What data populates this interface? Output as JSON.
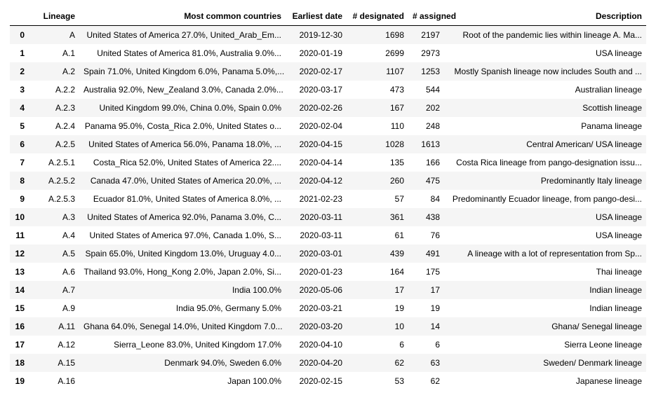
{
  "table": {
    "columns": [
      "",
      "Lineage",
      "Most common countries",
      "Earliest date",
      "# designated",
      "# assigned",
      "Description"
    ],
    "rows": [
      {
        "index": "0",
        "lineage": "A",
        "countries": "United States of America 27.0%, United_Arab_Em...",
        "date": "2019-12-30",
        "designated": "1698",
        "assigned": "2197",
        "description": "Root of the pandemic lies within lineage A. Ma..."
      },
      {
        "index": "1",
        "lineage": "A.1",
        "countries": "United States of America 81.0%, Australia 9.0%...",
        "date": "2020-01-19",
        "designated": "2699",
        "assigned": "2973",
        "description": "USA lineage"
      },
      {
        "index": "2",
        "lineage": "A.2",
        "countries": "Spain 71.0%, United Kingdom 6.0%, Panama 5.0%,...",
        "date": "2020-02-17",
        "designated": "1107",
        "assigned": "1253",
        "description": "Mostly Spanish lineage now includes South and ..."
      },
      {
        "index": "3",
        "lineage": "A.2.2",
        "countries": "Australia 92.0%, New_Zealand 3.0%, Canada 2.0%...",
        "date": "2020-03-17",
        "designated": "473",
        "assigned": "544",
        "description": "Australian lineage"
      },
      {
        "index": "4",
        "lineage": "A.2.3",
        "countries": "United Kingdom 99.0%, China 0.0%, Spain 0.0%",
        "date": "2020-02-26",
        "designated": "167",
        "assigned": "202",
        "description": "Scottish lineage"
      },
      {
        "index": "5",
        "lineage": "A.2.4",
        "countries": "Panama 95.0%, Costa_Rica 2.0%, United States o...",
        "date": "2020-02-04",
        "designated": "110",
        "assigned": "248",
        "description": "Panama lineage"
      },
      {
        "index": "6",
        "lineage": "A.2.5",
        "countries": "United States of America 56.0%, Panama 18.0%, ...",
        "date": "2020-04-15",
        "designated": "1028",
        "assigned": "1613",
        "description": "Central American/ USA lineage"
      },
      {
        "index": "7",
        "lineage": "A.2.5.1",
        "countries": "Costa_Rica 52.0%, United States of America 22....",
        "date": "2020-04-14",
        "designated": "135",
        "assigned": "166",
        "description": "Costa Rica lineage from pango-designation issu..."
      },
      {
        "index": "8",
        "lineage": "A.2.5.2",
        "countries": "Canada 47.0%, United States of America 20.0%, ...",
        "date": "2020-04-12",
        "designated": "260",
        "assigned": "475",
        "description": "Predominantly Italy lineage"
      },
      {
        "index": "9",
        "lineage": "A.2.5.3",
        "countries": "Ecuador 81.0%, United States of America 8.0%, ...",
        "date": "2021-02-23",
        "designated": "57",
        "assigned": "84",
        "description": "Predominantly Ecuador lineage, from pango-desi..."
      },
      {
        "index": "10",
        "lineage": "A.3",
        "countries": "United States of America 92.0%, Panama 3.0%, C...",
        "date": "2020-03-11",
        "designated": "361",
        "assigned": "438",
        "description": "USA lineage"
      },
      {
        "index": "11",
        "lineage": "A.4",
        "countries": "United States of America 97.0%, Canada 1.0%, S...",
        "date": "2020-03-11",
        "designated": "61",
        "assigned": "76",
        "description": "USA lineage"
      },
      {
        "index": "12",
        "lineage": "A.5",
        "countries": "Spain 65.0%, United Kingdom 13.0%, Uruguay 4.0...",
        "date": "2020-03-01",
        "designated": "439",
        "assigned": "491",
        "description": "A lineage with a lot of representation from Sp..."
      },
      {
        "index": "13",
        "lineage": "A.6",
        "countries": "Thailand 93.0%, Hong_Kong 2.0%, Japan 2.0%, Si...",
        "date": "2020-01-23",
        "designated": "164",
        "assigned": "175",
        "description": "Thai lineage"
      },
      {
        "index": "14",
        "lineage": "A.7",
        "countries": "India 100.0%",
        "date": "2020-05-06",
        "designated": "17",
        "assigned": "17",
        "description": "Indian lineage"
      },
      {
        "index": "15",
        "lineage": "A.9",
        "countries": "India 95.0%, Germany 5.0%",
        "date": "2020-03-21",
        "designated": "19",
        "assigned": "19",
        "description": "Indian lineage"
      },
      {
        "index": "16",
        "lineage": "A.11",
        "countries": "Ghana 64.0%, Senegal 14.0%, United Kingdom 7.0...",
        "date": "2020-03-20",
        "designated": "10",
        "assigned": "14",
        "description": "Ghana/ Senegal lineage"
      },
      {
        "index": "17",
        "lineage": "A.12",
        "countries": "Sierra_Leone 83.0%, United Kingdom 17.0%",
        "date": "2020-04-10",
        "designated": "6",
        "assigned": "6",
        "description": "Sierra Leone lineage"
      },
      {
        "index": "18",
        "lineage": "A.15",
        "countries": "Denmark 94.0%, Sweden 6.0%",
        "date": "2020-04-20",
        "designated": "62",
        "assigned": "63",
        "description": "Sweden/ Denmark lineage"
      },
      {
        "index": "19",
        "lineage": "A.16",
        "countries": "Japan 100.0%",
        "date": "2020-02-15",
        "designated": "53",
        "assigned": "62",
        "description": "Japanese lineage"
      }
    ]
  }
}
